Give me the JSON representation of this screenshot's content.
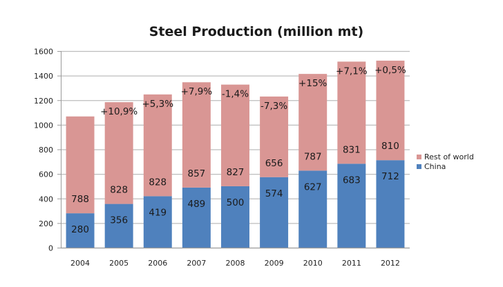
{
  "chart_data": {
    "type": "bar",
    "stacked": true,
    "title": "Steel Production (million mt)",
    "xlabel": "",
    "ylabel": "",
    "ylim": [
      0,
      1600
    ],
    "yticks": [
      0,
      200,
      400,
      600,
      800,
      1000,
      1200,
      1400,
      1600
    ],
    "grid": true,
    "legend_position": "right",
    "categories": [
      "2004",
      "2005",
      "2006",
      "2007",
      "2008",
      "2009",
      "2010",
      "2011",
      "2012"
    ],
    "series": [
      {
        "name": "China",
        "color": "#4f81bd",
        "values": [
          280,
          356,
          419,
          489,
          500,
          574,
          627,
          683,
          712
        ]
      },
      {
        "name": "Rest of world",
        "color": "#d99694",
        "values": [
          788,
          828,
          828,
          857,
          827,
          656,
          787,
          831,
          810
        ]
      }
    ],
    "annotations": [
      "",
      "+10,9%",
      "+5,3%",
      "+7,9%",
      "-1,4%",
      "-7,3%",
      "+15%",
      "+7,1%",
      "+0,5%"
    ],
    "legend": [
      "Rest of world",
      "China"
    ]
  }
}
